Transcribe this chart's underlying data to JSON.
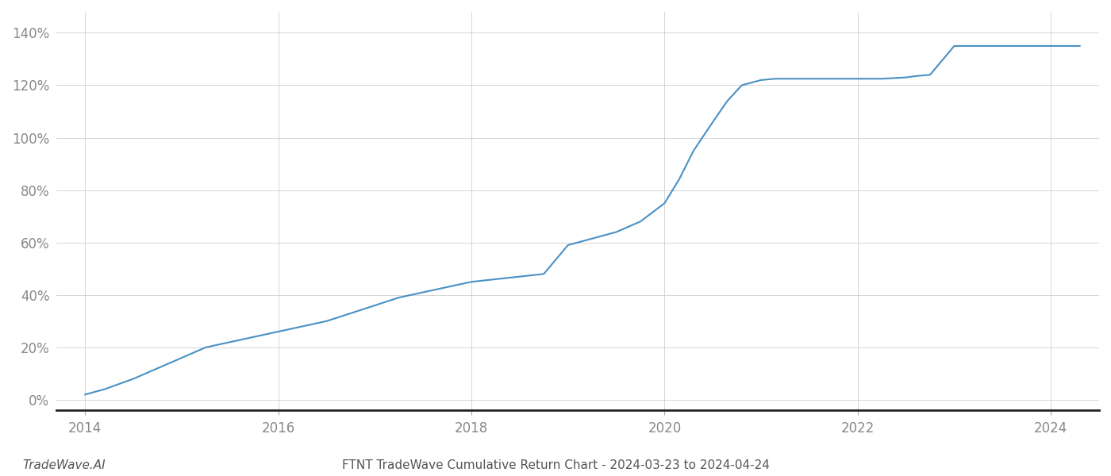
{
  "x_values": [
    2014.0,
    2014.2,
    2014.5,
    2014.75,
    2015.0,
    2015.25,
    2015.5,
    2015.75,
    2016.0,
    2016.25,
    2016.5,
    2016.75,
    2017.0,
    2017.25,
    2017.5,
    2017.75,
    2018.0,
    2018.25,
    2018.5,
    2018.75,
    2019.0,
    2019.1,
    2019.25,
    2019.5,
    2019.75,
    2020.0,
    2020.15,
    2020.3,
    2020.5,
    2020.65,
    2020.8,
    2021.0,
    2021.15,
    2021.3,
    2021.5,
    2021.75,
    2022.0,
    2022.25,
    2022.5,
    2022.6,
    2022.75,
    2023.0,
    2023.1,
    2023.5,
    2023.75,
    2024.0,
    2024.3
  ],
  "y_values": [
    2.0,
    4.0,
    8.0,
    12.0,
    16.0,
    20.0,
    22.0,
    24.0,
    26.0,
    28.0,
    30.0,
    33.0,
    36.0,
    39.0,
    41.0,
    43.0,
    45.0,
    46.0,
    47.0,
    48.0,
    59.0,
    60.0,
    61.5,
    64.0,
    68.0,
    75.0,
    84.0,
    95.0,
    106.0,
    114.0,
    120.0,
    122.0,
    122.5,
    122.5,
    122.5,
    122.5,
    122.5,
    122.5,
    123.0,
    123.5,
    124.0,
    135.0,
    135.0,
    135.0,
    135.0,
    135.0,
    135.0
  ],
  "line_color": "#4a90c4",
  "line_width": 1.5,
  "title": "FTNT TradeWave Cumulative Return Chart - 2024-03-23 to 2024-04-24",
  "watermark": "TradeWave.AI",
  "ytick_labels": [
    "0%",
    "20%",
    "40%",
    "60%",
    "80%",
    "100%",
    "120%",
    "140%"
  ],
  "ytick_values": [
    0,
    20,
    40,
    60,
    80,
    100,
    120,
    140
  ],
  "xtick_values": [
    2014,
    2016,
    2018,
    2020,
    2022,
    2024
  ],
  "xlim": [
    2013.7,
    2024.5
  ],
  "ylim": [
    -4,
    148
  ],
  "grid_color": "#cccccc",
  "background_color": "#ffffff",
  "font_color_title": "#555555",
  "font_color_watermark": "#555555",
  "title_fontsize": 11,
  "watermark_fontsize": 11,
  "tick_fontsize": 12,
  "tick_color": "#888888",
  "spine_bottom_color": "#222222",
  "spine_bottom_width": 2.0
}
